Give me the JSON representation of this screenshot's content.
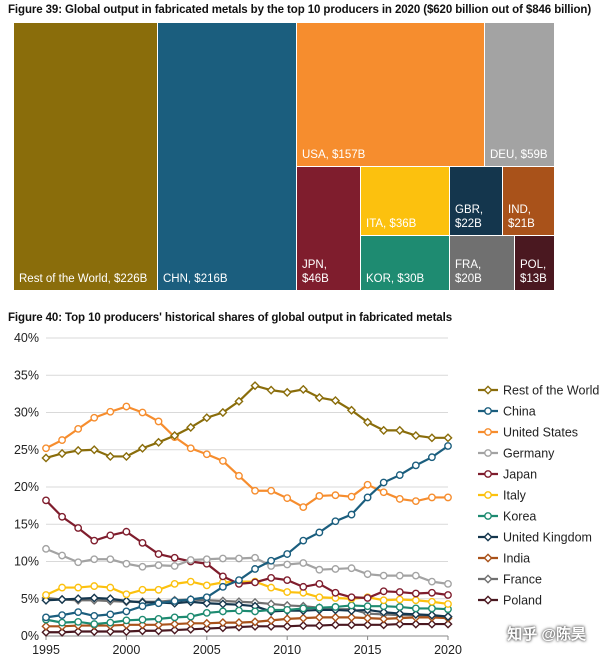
{
  "figure39": {
    "title": "Figure 39: Global output in fabricated metals by the top 10 producers in 2020 ($620 billion out of $846 billion)"
  },
  "figure40": {
    "title": "Figure 40: Top 10 producers' historical shares of global output in fabricated metals"
  },
  "watermark": "知乎 @陈昊",
  "chart_data": [
    {
      "type": "treemap",
      "title": "Figure 39: Global output in fabricated metals by the top 10 producers in 2020 ($620 billion out of $846 billion)",
      "items": [
        {
          "name": "Rest of the World",
          "value": 226,
          "label": "Rest of the World, $226B",
          "color": "#8a6d0b"
        },
        {
          "name": "CHN",
          "value": 216,
          "label": "CHN, $216B",
          "color": "#1b5e7e"
        },
        {
          "name": "USA",
          "value": 157,
          "label": "USA, $157B",
          "color": "#f68d2e"
        },
        {
          "name": "DEU",
          "value": 59,
          "label": "DEU, $59B",
          "color": "#a3a3a3"
        },
        {
          "name": "JPN",
          "value": 46,
          "label": "JPN,\n$46B",
          "color": "#7f1d2d"
        },
        {
          "name": "ITA",
          "value": 36,
          "label": "ITA, $36B",
          "color": "#fcc10e"
        },
        {
          "name": "KOR",
          "value": 30,
          "label": "KOR, $30B",
          "color": "#1e8b71"
        },
        {
          "name": "GBR",
          "value": 22,
          "label": "GBR,\n$22B",
          "color": "#14364d"
        },
        {
          "name": "IND",
          "value": 21,
          "label": "IND,\n$21B",
          "color": "#a9521a"
        },
        {
          "name": "FRA",
          "value": 20,
          "label": "FRA,\n$20B",
          "color": "#707070"
        },
        {
          "name": "POL",
          "value": 13,
          "label": "POL,\n$13B",
          "color": "#4a1820"
        }
      ]
    },
    {
      "type": "line",
      "title": "Figure 40: Top 10 producers' historical shares of global output in fabricated metals",
      "x": [
        1995,
        1996,
        1997,
        1998,
        1999,
        2000,
        2001,
        2002,
        2003,
        2004,
        2005,
        2006,
        2007,
        2008,
        2009,
        2010,
        2011,
        2012,
        2013,
        2014,
        2015,
        2016,
        2017,
        2018,
        2019,
        2020
      ],
      "xticks": [
        1995,
        2000,
        2005,
        2010,
        2015,
        2020
      ],
      "yticks": [
        "0%",
        "5%",
        "10%",
        "15%",
        "20%",
        "25%",
        "30%",
        "35%",
        "40%"
      ],
      "ylim": [
        0,
        40
      ],
      "grid": true,
      "legend": "right",
      "series": [
        {
          "name": "Rest of the World",
          "color": "#8a6d0b",
          "marker": "diamond",
          "values": [
            23.9,
            24.5,
            24.9,
            25.0,
            24.1,
            24.1,
            25.2,
            26.0,
            26.9,
            28.0,
            29.3,
            30.0,
            31.5,
            33.6,
            33.0,
            32.7,
            33.1,
            32.0,
            31.6,
            30.3,
            28.7,
            27.6,
            27.6,
            26.9,
            26.6,
            26.6
          ]
        },
        {
          "name": "China",
          "color": "#1b5e7e",
          "marker": "circle",
          "values": [
            2.5,
            2.8,
            3.2,
            2.7,
            2.9,
            3.3,
            4.0,
            4.4,
            4.7,
            4.9,
            5.2,
            6.6,
            7.5,
            9.0,
            10.1,
            11.0,
            12.8,
            13.9,
            15.4,
            16.3,
            18.6,
            20.6,
            21.6,
            22.9,
            24.0,
            25.5
          ]
        },
        {
          "name": "United States",
          "color": "#f68d2e",
          "marker": "circle",
          "values": [
            25.2,
            26.3,
            27.8,
            29.3,
            30.1,
            30.8,
            30.0,
            28.8,
            26.7,
            25.2,
            24.4,
            23.5,
            21.5,
            19.5,
            19.5,
            18.5,
            17.3,
            18.8,
            18.9,
            18.7,
            20.3,
            19.3,
            18.4,
            18.1,
            18.6,
            18.6
          ]
        },
        {
          "name": "Germany",
          "color": "#a3a3a3",
          "marker": "circle",
          "values": [
            11.7,
            10.8,
            9.9,
            10.3,
            10.3,
            9.7,
            9.3,
            9.5,
            9.4,
            10.2,
            10.3,
            10.4,
            10.4,
            10.5,
            9.4,
            9.6,
            9.8,
            8.9,
            9.0,
            9.1,
            8.3,
            8.1,
            8.1,
            8.1,
            7.3,
            7.0
          ]
        },
        {
          "name": "Japan",
          "color": "#7f1d2d",
          "marker": "circle",
          "values": [
            18.2,
            16.0,
            14.5,
            12.8,
            13.5,
            14.0,
            12.5,
            11.0,
            10.5,
            10.0,
            9.7,
            8.0,
            7.0,
            7.2,
            7.8,
            7.5,
            6.6,
            7.0,
            5.8,
            5.2,
            5.1,
            6.0,
            5.9,
            5.7,
            5.8,
            5.5
          ]
        },
        {
          "name": "Italy",
          "color": "#fcc10e",
          "marker": "circle",
          "values": [
            5.5,
            6.5,
            6.5,
            6.7,
            6.5,
            5.6,
            6.2,
            6.2,
            7.0,
            7.3,
            6.8,
            7.2,
            7.3,
            7.3,
            6.5,
            5.9,
            5.8,
            5.2,
            5.1,
            5.0,
            5.2,
            4.8,
            4.9,
            4.8,
            4.6,
            4.3
          ]
        },
        {
          "name": "Korea",
          "color": "#1e8b71",
          "marker": "circle",
          "values": [
            2.2,
            1.8,
            1.9,
            1.6,
            1.8,
            2.1,
            2.2,
            2.3,
            2.5,
            2.6,
            3.1,
            3.3,
            3.4,
            3.3,
            3.5,
            3.5,
            3.7,
            3.8,
            3.9,
            4.1,
            4.0,
            4.0,
            3.9,
            3.7,
            3.7,
            3.6
          ]
        },
        {
          "name": "United Kingdom",
          "color": "#14364d",
          "marker": "diamond",
          "values": [
            4.8,
            4.9,
            5.0,
            5.1,
            5.0,
            4.7,
            4.5,
            4.5,
            4.4,
            4.6,
            4.4,
            4.3,
            4.2,
            4.0,
            3.3,
            3.4,
            3.4,
            3.5,
            3.5,
            3.4,
            3.5,
            3.2,
            3.0,
            2.9,
            2.8,
            2.6
          ]
        },
        {
          "name": "India",
          "color": "#a9521a",
          "marker": "diamond",
          "values": [
            1.3,
            1.3,
            1.4,
            1.4,
            1.4,
            1.5,
            1.5,
            1.5,
            1.6,
            1.7,
            1.7,
            1.8,
            1.8,
            1.9,
            2.1,
            2.3,
            2.4,
            2.5,
            2.5,
            2.5,
            2.4,
            2.3,
            2.4,
            2.5,
            2.5,
            2.4
          ]
        },
        {
          "name": "France",
          "color": "#707070",
          "marker": "diamond",
          "values": [
            5.1,
            4.9,
            4.8,
            4.8,
            4.7,
            4.6,
            4.6,
            4.6,
            4.8,
            4.9,
            4.8,
            4.7,
            4.6,
            4.5,
            4.3,
            4.1,
            4.0,
            3.8,
            3.6,
            3.6,
            3.0,
            2.9,
            2.8,
            2.8,
            2.7,
            2.6
          ]
        },
        {
          "name": "Poland",
          "color": "#4a1820",
          "marker": "diamond",
          "values": [
            0.5,
            0.5,
            0.6,
            0.6,
            0.6,
            0.6,
            0.7,
            0.7,
            0.8,
            0.9,
            1.0,
            1.1,
            1.2,
            1.3,
            1.3,
            1.3,
            1.4,
            1.4,
            1.5,
            1.5,
            1.5,
            1.5,
            1.6,
            1.6,
            1.6,
            1.6
          ]
        }
      ]
    }
  ]
}
